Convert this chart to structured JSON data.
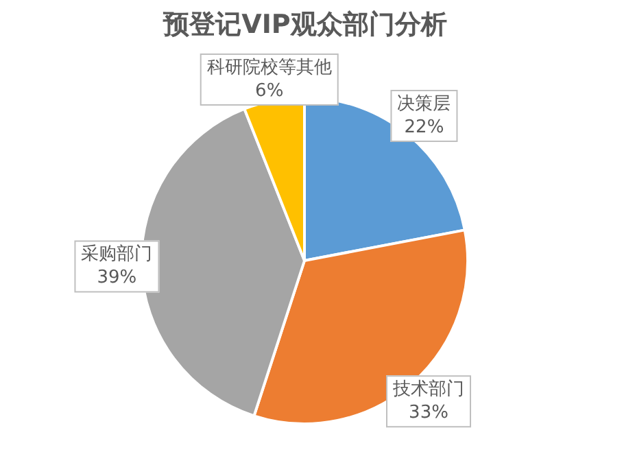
{
  "chart_data": {
    "type": "pie",
    "title": "预登记VIP观众部门分析",
    "categories": [
      "决策层",
      "技术部门",
      "采购部门",
      "科研院校等其他"
    ],
    "values": [
      22,
      33,
      39,
      6
    ],
    "value_labels": [
      "22%",
      "33%",
      "39%",
      "6%"
    ],
    "colors": [
      "#5b9bd5",
      "#ed7d31",
      "#a5a5a5",
      "#ffc000"
    ],
    "legend": false
  }
}
